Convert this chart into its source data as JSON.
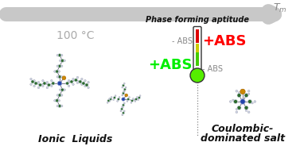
{
  "bg_color": "#ffffff",
  "arrow_color": "#c8c8c8",
  "temp_label": "100 °C",
  "temp_label_color": "#aaaaaa",
  "tm_color": "#888888",
  "title_text": "Phase forming aptitude",
  "title_color": "#111111",
  "red_color": "#ff0000",
  "green_color": "#00ee00",
  "gray_abs_color": "#888888",
  "il_label": "Ionic  Liquids",
  "il_label_color": "#111111",
  "cs_label_line1": "Coulombic-",
  "cs_label_line2": "dominated salt",
  "cs_label_color": "#111111",
  "therm_red": "#dd0000",
  "therm_yellow": "#cccc00",
  "therm_green_tube": "#44cc00",
  "therm_bulb": "#55ee00",
  "therm_edge": "#333333",
  "dot_line_color": "#888888",
  "atom_green": "#2d6b2d",
  "atom_blue": "#2244aa",
  "atom_white": "#d0d8e8",
  "atom_gold": "#cc8800",
  "bond_color": "#666677"
}
